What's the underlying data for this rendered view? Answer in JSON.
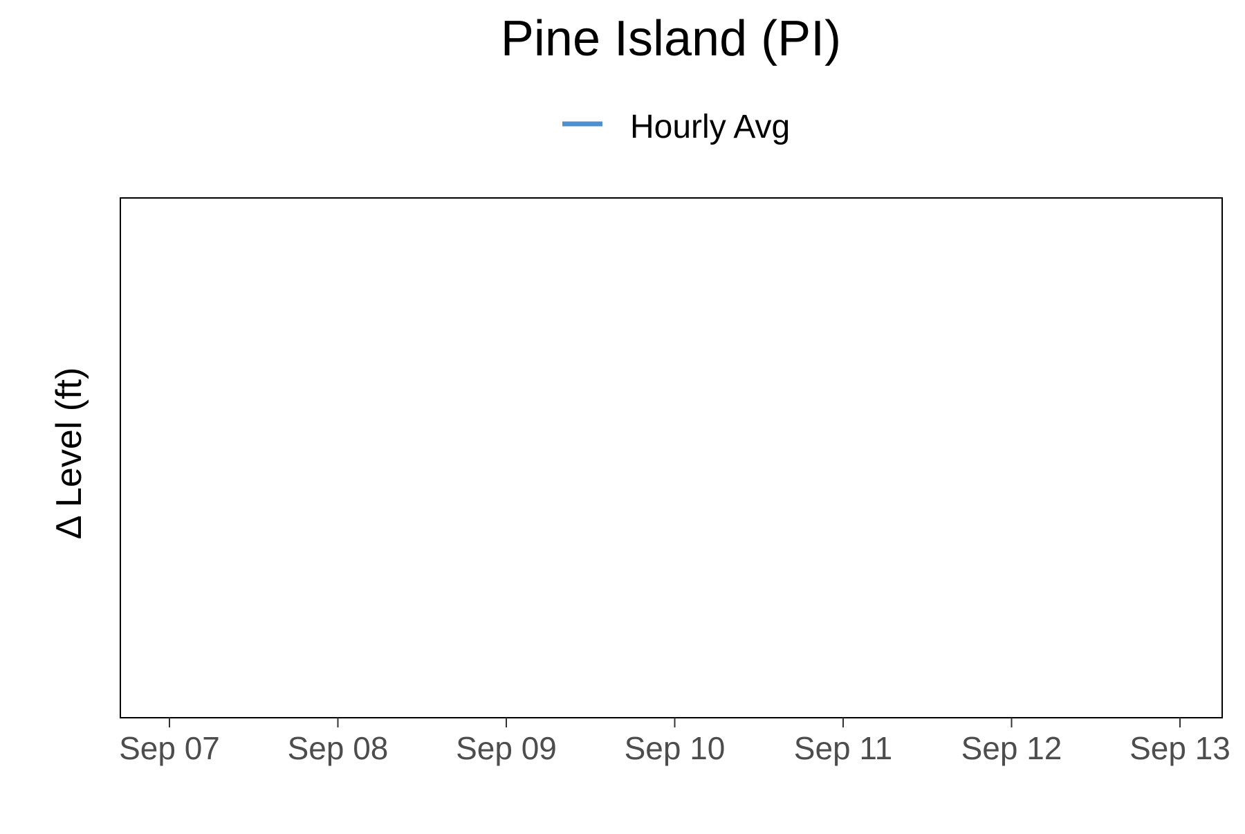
{
  "chart_data": {
    "type": "line",
    "title": "Pine Island (PI)",
    "xlabel": "",
    "ylabel": "Δ Level (ft)",
    "x_ticks": [
      "Sep 07",
      "Sep 08",
      "Sep 09",
      "Sep 10",
      "Sep 11",
      "Sep 12",
      "Sep 13"
    ],
    "series": [
      {
        "name": "Hourly Avg",
        "color": "#4f90cd",
        "values": []
      }
    ],
    "legend_position": "top",
    "grid": false
  }
}
